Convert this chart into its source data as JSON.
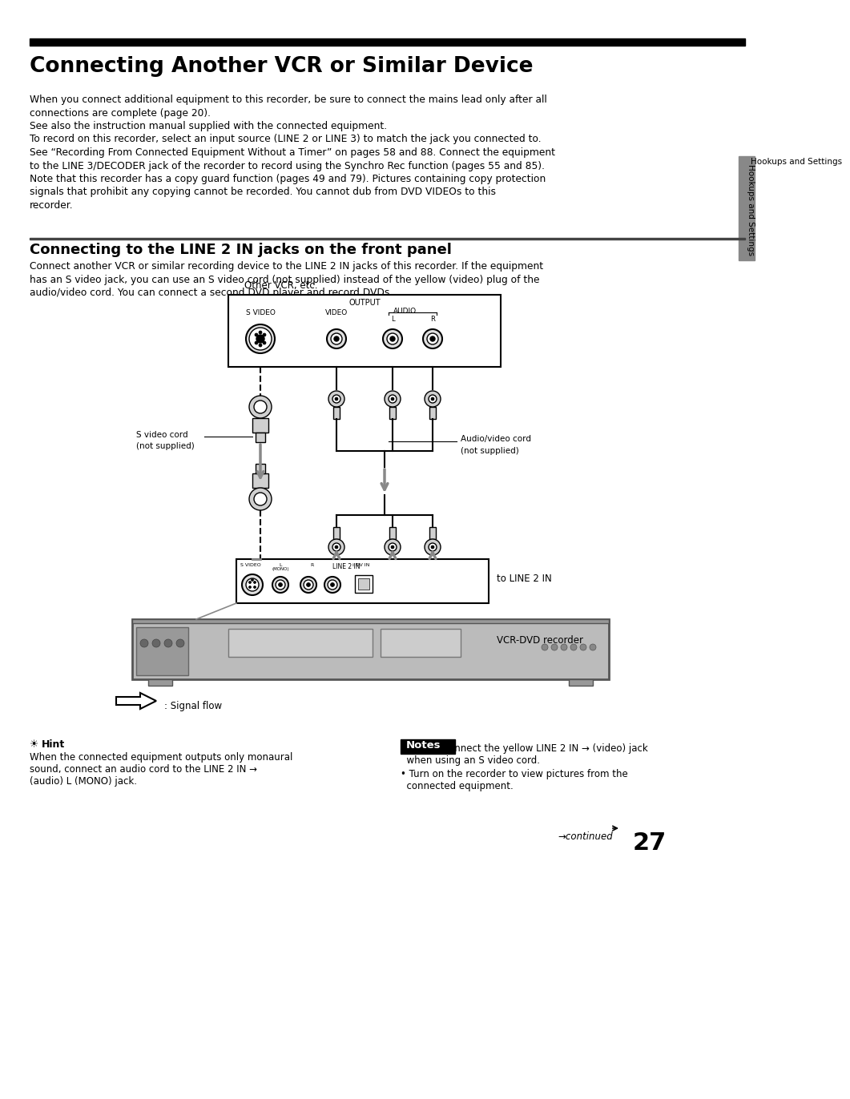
{
  "title": "Connecting Another VCR or Similar Device",
  "subtitle": "Connecting to the LINE 2 IN jacks on the front panel",
  "sidebar_text": "Hookups and Settings",
  "body_text1_lines": [
    "When you connect additional equipment to this recorder, be sure to connect the mains lead only after all",
    "connections are complete (page 20).",
    "See also the instruction manual supplied with the connected equipment.",
    "To record on this recorder, select an input source (LINE 2 or LINE 3) to match the jack you connected to.",
    "See “Recording From Connected Equipment Without a Timer” on pages 58 and 88. Connect the equipment",
    "to the LINE 3/DECODER jack of the recorder to record using the Synchro Rec function (pages 55 and 85).",
    "Note that this recorder has a copy guard function (pages 49 and 79). Pictures containing copy protection",
    "signals that prohibit any copying cannot be recorded. You cannot dub from DVD VIDEOs to this",
    "recorder."
  ],
  "body_text2_lines": [
    "Connect another VCR or similar recording device to the LINE 2 IN jacks of this recorder. If the equipment",
    "has an S video jack, you can use an S video cord (not supplied) instead of the yellow (video) plug of the",
    "audio/video cord. You can connect a second DVD player and record DVDs."
  ],
  "diagram_label_top": "Other VCR, etc.",
  "diagram_label_output": "OUTPUT",
  "diagram_label_svideo_top": "S VIDEO",
  "diagram_label_video_top": "VIDEO",
  "diagram_label_audio_top": "AUDIO",
  "diagram_label_L": "L",
  "diagram_label_R": "R",
  "diagram_label_svideo_cord": "S video cord",
  "diagram_label_svideo_cord2": "(not supplied)",
  "diagram_label_audio_cord": "Audio/video cord",
  "diagram_label_audio_cord2": "(not supplied)",
  "diagram_label_line2in": "to LINE 2 IN",
  "diagram_label_vcrdvd": "VCR-DVD recorder",
  "signal_flow_label": ": Signal flow",
  "hint_title": "Hint",
  "hint_lines": [
    "When the connected equipment outputs only monaural",
    "sound, connect an audio cord to the LINE 2 IN →",
    "(audio) L (MONO) jack."
  ],
  "notes_title": "Notes",
  "note1_lines": [
    "• Do not connect the yellow LINE 2 IN → (video) jack",
    "  when using an S video cord."
  ],
  "note2_lines": [
    "• Turn on the recorder to view pictures from the",
    "  connected equipment."
  ],
  "continued_text": "→continued",
  "page_number": "27",
  "bg_color": "#ffffff",
  "text_color": "#000000",
  "title_bar_color": "#000000",
  "notes_bg": "#000000",
  "notes_text_color": "#ffffff",
  "sidebar_bar_color": "#888888"
}
